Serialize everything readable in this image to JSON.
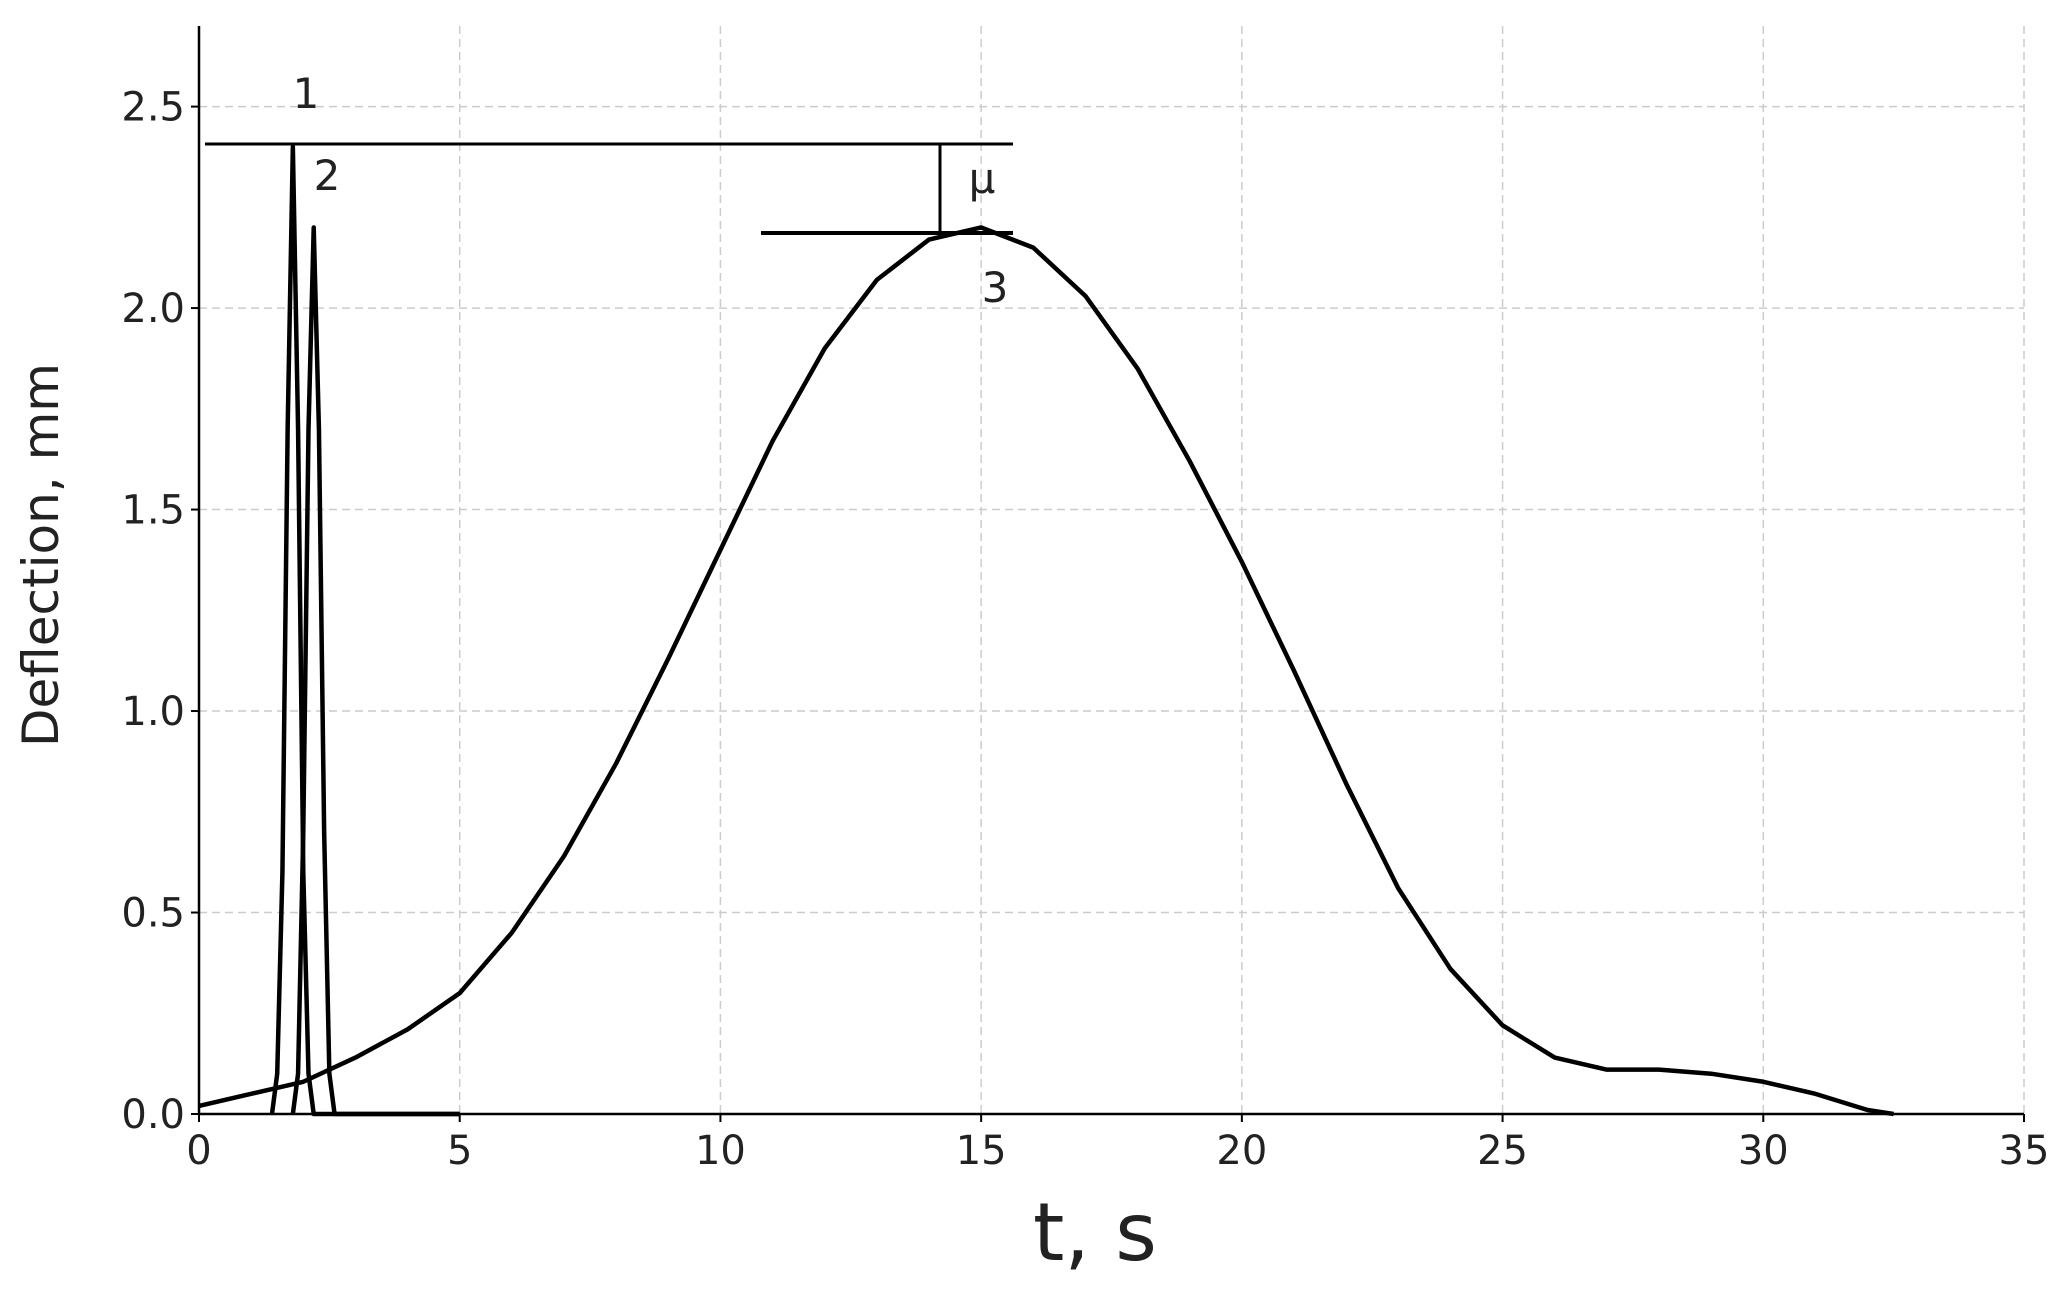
{
  "chart_data": {
    "type": "line",
    "xlabel": "t, s",
    "ylabel": "Deflection, mm",
    "xlim": [
      0,
      35
    ],
    "ylim": [
      0,
      2.7
    ],
    "xticks": [
      0,
      5,
      10,
      15,
      20,
      25,
      30,
      35
    ],
    "yticks": [
      {
        "value": 0,
        "label": "0.0"
      },
      0.5,
      {
        "value": 1,
        "label": "1.0"
      },
      1.5,
      {
        "value": 2,
        "label": "2.0"
      },
      2.5
    ],
    "grid": true,
    "series": [
      {
        "color": "#000000",
        "x": [
          1.4,
          1.5,
          1.6,
          1.7,
          1.8,
          1.9,
          2.0,
          2.1,
          2.2,
          5
        ],
        "values": [
          0,
          0.1,
          0.6,
          1.7,
          2.4,
          1.7,
          0.6,
          0.1,
          0,
          0
        ]
      },
      {
        "color": "#000000",
        "x": [
          1.8,
          1.9,
          2.0,
          2.1,
          2.2,
          2.3,
          2.4,
          2.5,
          2.6,
          5
        ],
        "values": [
          0,
          0.1,
          0.7,
          1.7,
          2.2,
          1.7,
          0.7,
          0.1,
          0,
          0
        ]
      },
      {
        "color": "#000000",
        "x": [
          0,
          1,
          2,
          3,
          4,
          5,
          6,
          7,
          8,
          9,
          10,
          11,
          12,
          13,
          14,
          15,
          16,
          17,
          18,
          19,
          20,
          21,
          22,
          23,
          24,
          25,
          26,
          27,
          28,
          29,
          30,
          31,
          32,
          32.5
        ],
        "values": [
          0.02,
          0.05,
          0.08,
          0.14,
          0.21,
          0.3,
          0.45,
          0.64,
          0.87,
          1.13,
          1.4,
          1.67,
          1.9,
          2.07,
          2.17,
          2.2,
          2.15,
          2.03,
          1.85,
          1.62,
          1.37,
          1.1,
          0.82,
          0.56,
          0.36,
          0.22,
          0.14,
          0.11,
          0.11,
          0.1,
          0.08,
          0.05,
          0.01,
          0
        ]
      }
    ],
    "annotations": [
      "1",
      "2",
      "3",
      "μ"
    ]
  }
}
